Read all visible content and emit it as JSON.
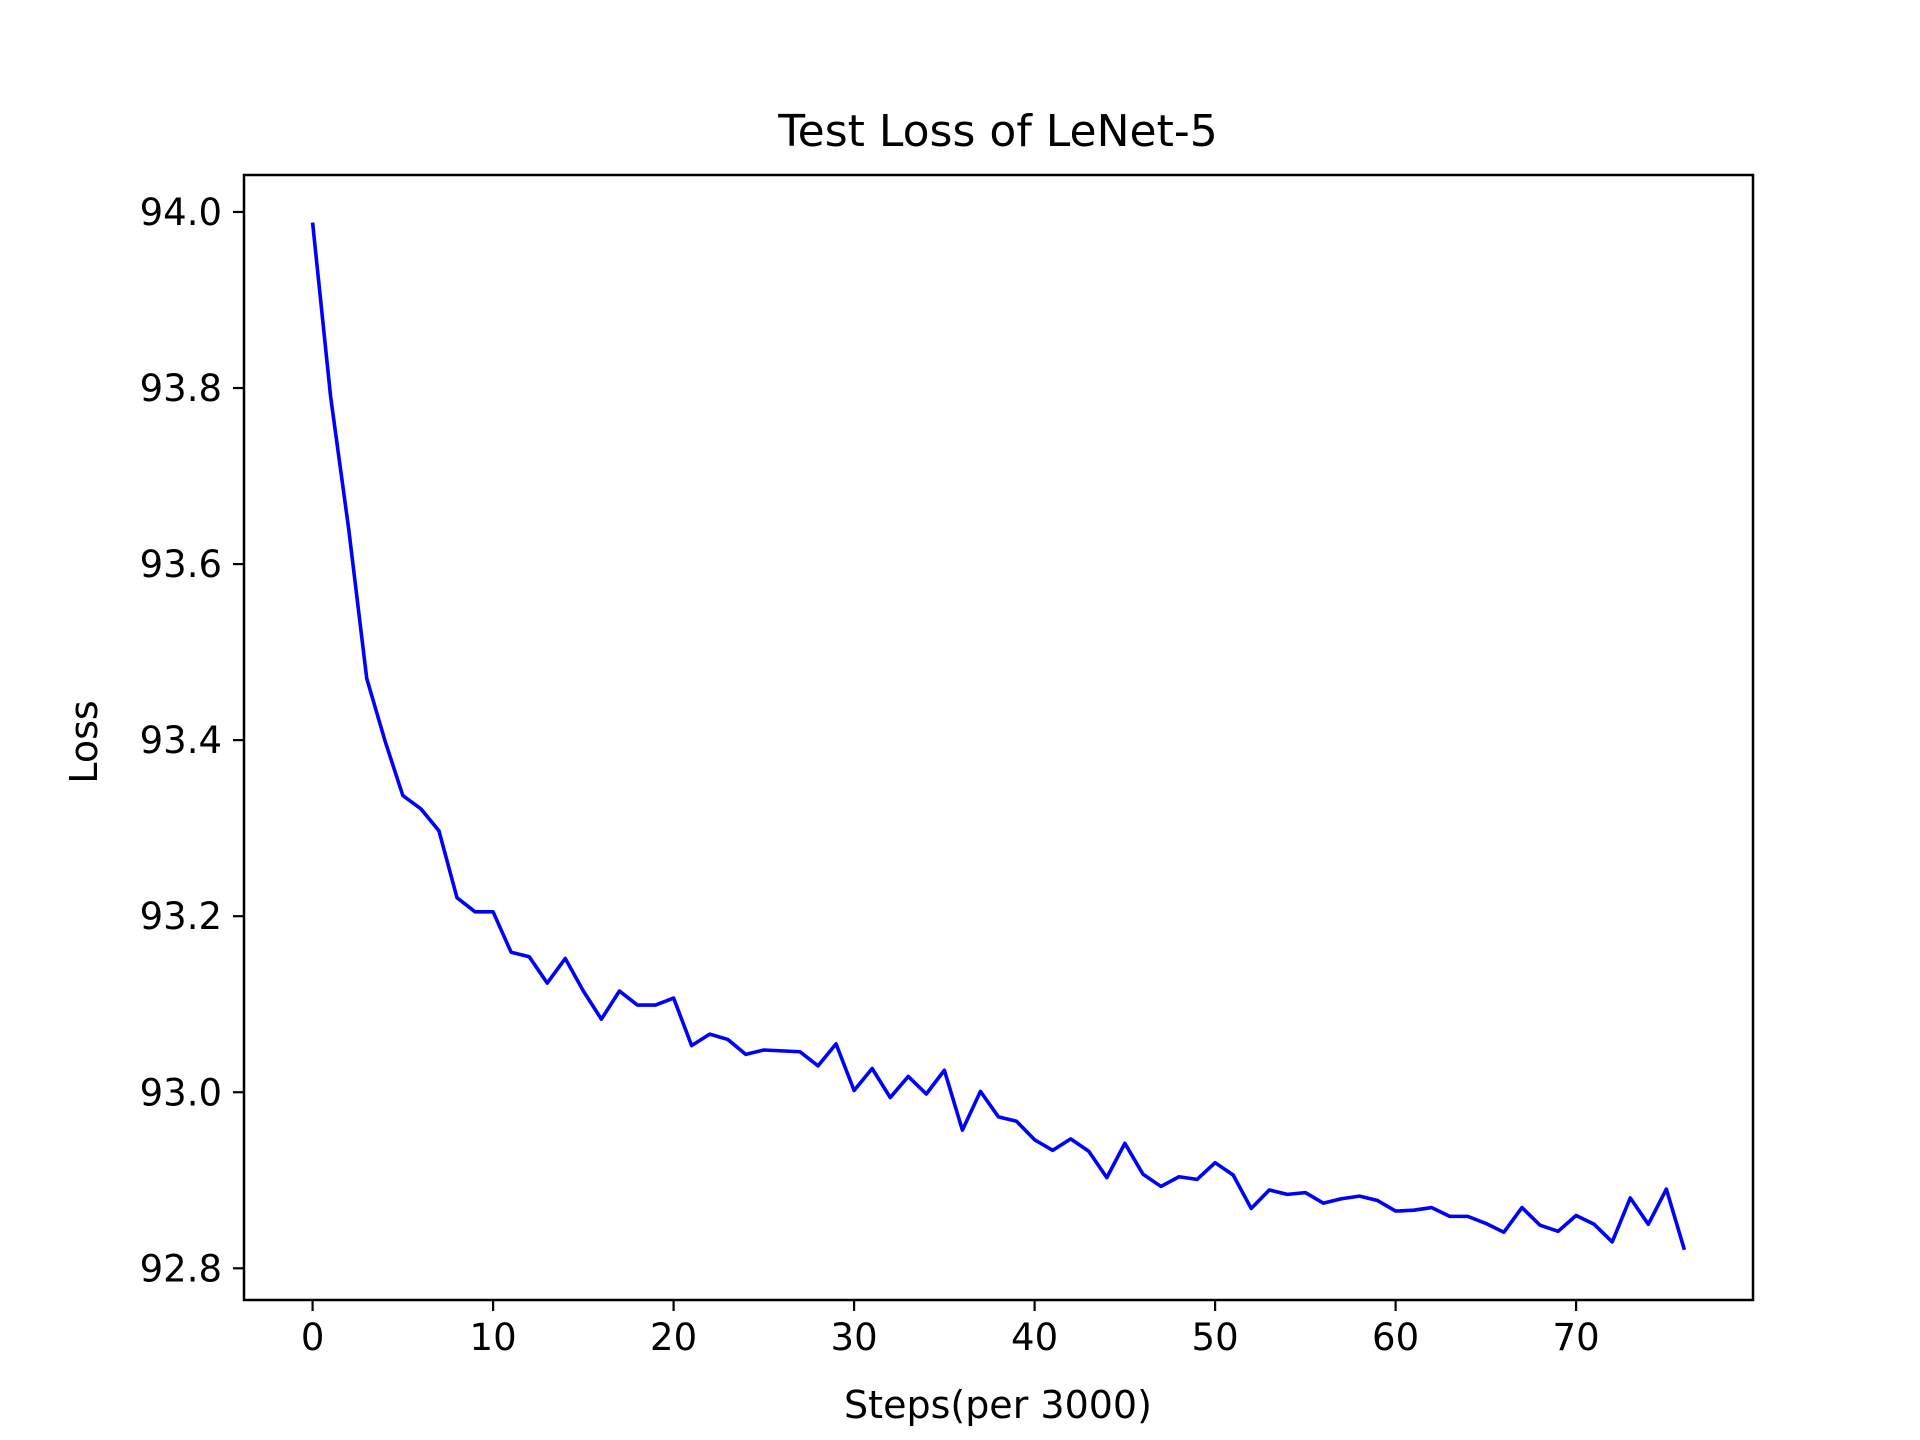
{
  "chart_data": {
    "type": "line",
    "title": "Test Loss of LeNet-5",
    "xlabel": "Steps(per 3000)",
    "ylabel": "Loss",
    "xlim": [
      -3.8,
      79.8
    ],
    "ylim": [
      92.764,
      94.042
    ],
    "xticks": [
      0,
      10,
      20,
      30,
      40,
      50,
      60,
      70
    ],
    "yticks": [
      92.8,
      93.0,
      93.2,
      93.4,
      93.6,
      93.8,
      94.0
    ],
    "ytick_labels": [
      "92.8",
      "93.0",
      "93.2",
      "93.4",
      "93.6",
      "93.8",
      "94.0"
    ],
    "grid": false,
    "series": [
      {
        "color": "#0000ff",
        "x": [
          0,
          1,
          2,
          3,
          4,
          5,
          6,
          7,
          8,
          9,
          10,
          11,
          12,
          13,
          14,
          15,
          16,
          17,
          18,
          19,
          20,
          21,
          22,
          23,
          24,
          25,
          26,
          27,
          28,
          29,
          30,
          31,
          32,
          33,
          34,
          35,
          36,
          37,
          38,
          39,
          40,
          41,
          42,
          43,
          44,
          45,
          46,
          47,
          48,
          49,
          50,
          51,
          52,
          53,
          54,
          55,
          56,
          57,
          58,
          59,
          60,
          61,
          62,
          63,
          64,
          65,
          66,
          67,
          68,
          69,
          70,
          71,
          72,
          73,
          74,
          75,
          76
        ],
        "values": [
          93.988,
          93.79,
          93.64,
          93.47,
          93.4,
          93.337,
          93.322,
          93.297,
          93.221,
          93.205,
          93.205,
          93.159,
          93.154,
          93.124,
          93.152,
          93.115,
          93.083,
          93.115,
          93.099,
          93.099,
          93.107,
          93.053,
          93.066,
          93.06,
          93.043,
          93.048,
          93.047,
          93.046,
          93.03,
          93.055,
          93.002,
          93.027,
          92.994,
          93.018,
          92.998,
          93.025,
          92.957,
          93.001,
          92.972,
          92.967,
          92.946,
          92.934,
          92.947,
          92.933,
          92.903,
          92.942,
          92.907,
          92.893,
          92.904,
          92.901,
          92.92,
          92.906,
          92.868,
          92.889,
          92.884,
          92.886,
          92.874,
          92.879,
          92.882,
          92.877,
          92.865,
          92.866,
          92.869,
          92.859,
          92.859,
          92.851,
          92.841,
          92.869,
          92.849,
          92.842,
          92.86,
          92.85,
          92.83,
          92.88,
          92.85,
          92.89,
          92.821
        ]
      }
    ]
  }
}
